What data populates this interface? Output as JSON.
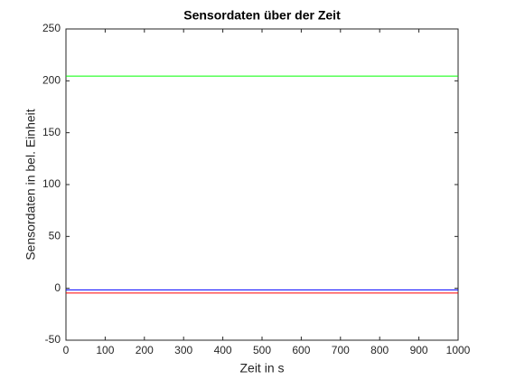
{
  "chart_data": {
    "type": "line",
    "title": "Sensordaten über der Zeit",
    "xlabel": "Zeit in s",
    "ylabel": "Sensordaten in bel. Einheit",
    "x": [
      0,
      250,
      500,
      750,
      1000
    ],
    "series": [
      {
        "color": "#00ff00",
        "values": [
          204.5,
          204.5,
          204.5,
          204.5,
          204.5
        ]
      },
      {
        "color": "#0000ff",
        "values": [
          -1.5,
          -1.5,
          -1.5,
          -1.5,
          -1.5
        ]
      },
      {
        "color": "#ff0000",
        "values": [
          -4.5,
          -4.5,
          -4.5,
          -4.5,
          -4.5
        ]
      }
    ],
    "xlim": [
      0,
      1000
    ],
    "xticks": [
      0,
      100,
      200,
      300,
      400,
      500,
      600,
      700,
      800,
      900,
      1000
    ],
    "ylim": [
      -50,
      250
    ],
    "yticks": [
      -50,
      0,
      50,
      100,
      150,
      200,
      250
    ],
    "grid": false
  }
}
